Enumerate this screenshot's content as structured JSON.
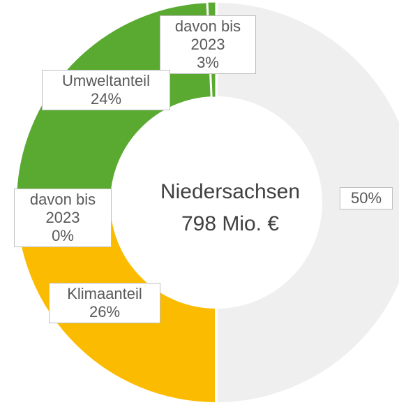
{
  "chart_data": {
    "type": "pie",
    "donut": true,
    "center_title": "Niedersachsen",
    "center_subtitle": "798 Mio. €",
    "segments": [
      {
        "name": null,
        "value": 50,
        "value_label": "50%",
        "color": "#efefef"
      },
      {
        "name": "Klimaanteil",
        "value": 26,
        "value_label": "26%",
        "color": "#fbbb00",
        "of_which": {
          "name": "davon bis 2023",
          "value": 0,
          "value_label": "0%",
          "color": "#f0a030"
        }
      },
      {
        "name": "Umweltanteil",
        "value": 24,
        "value_label": "24%",
        "color": "#5aaa32",
        "of_which": {
          "name": "davon bis 2023",
          "value": 3,
          "value_label": "3%",
          "color": "#5aaa32"
        }
      }
    ]
  }
}
